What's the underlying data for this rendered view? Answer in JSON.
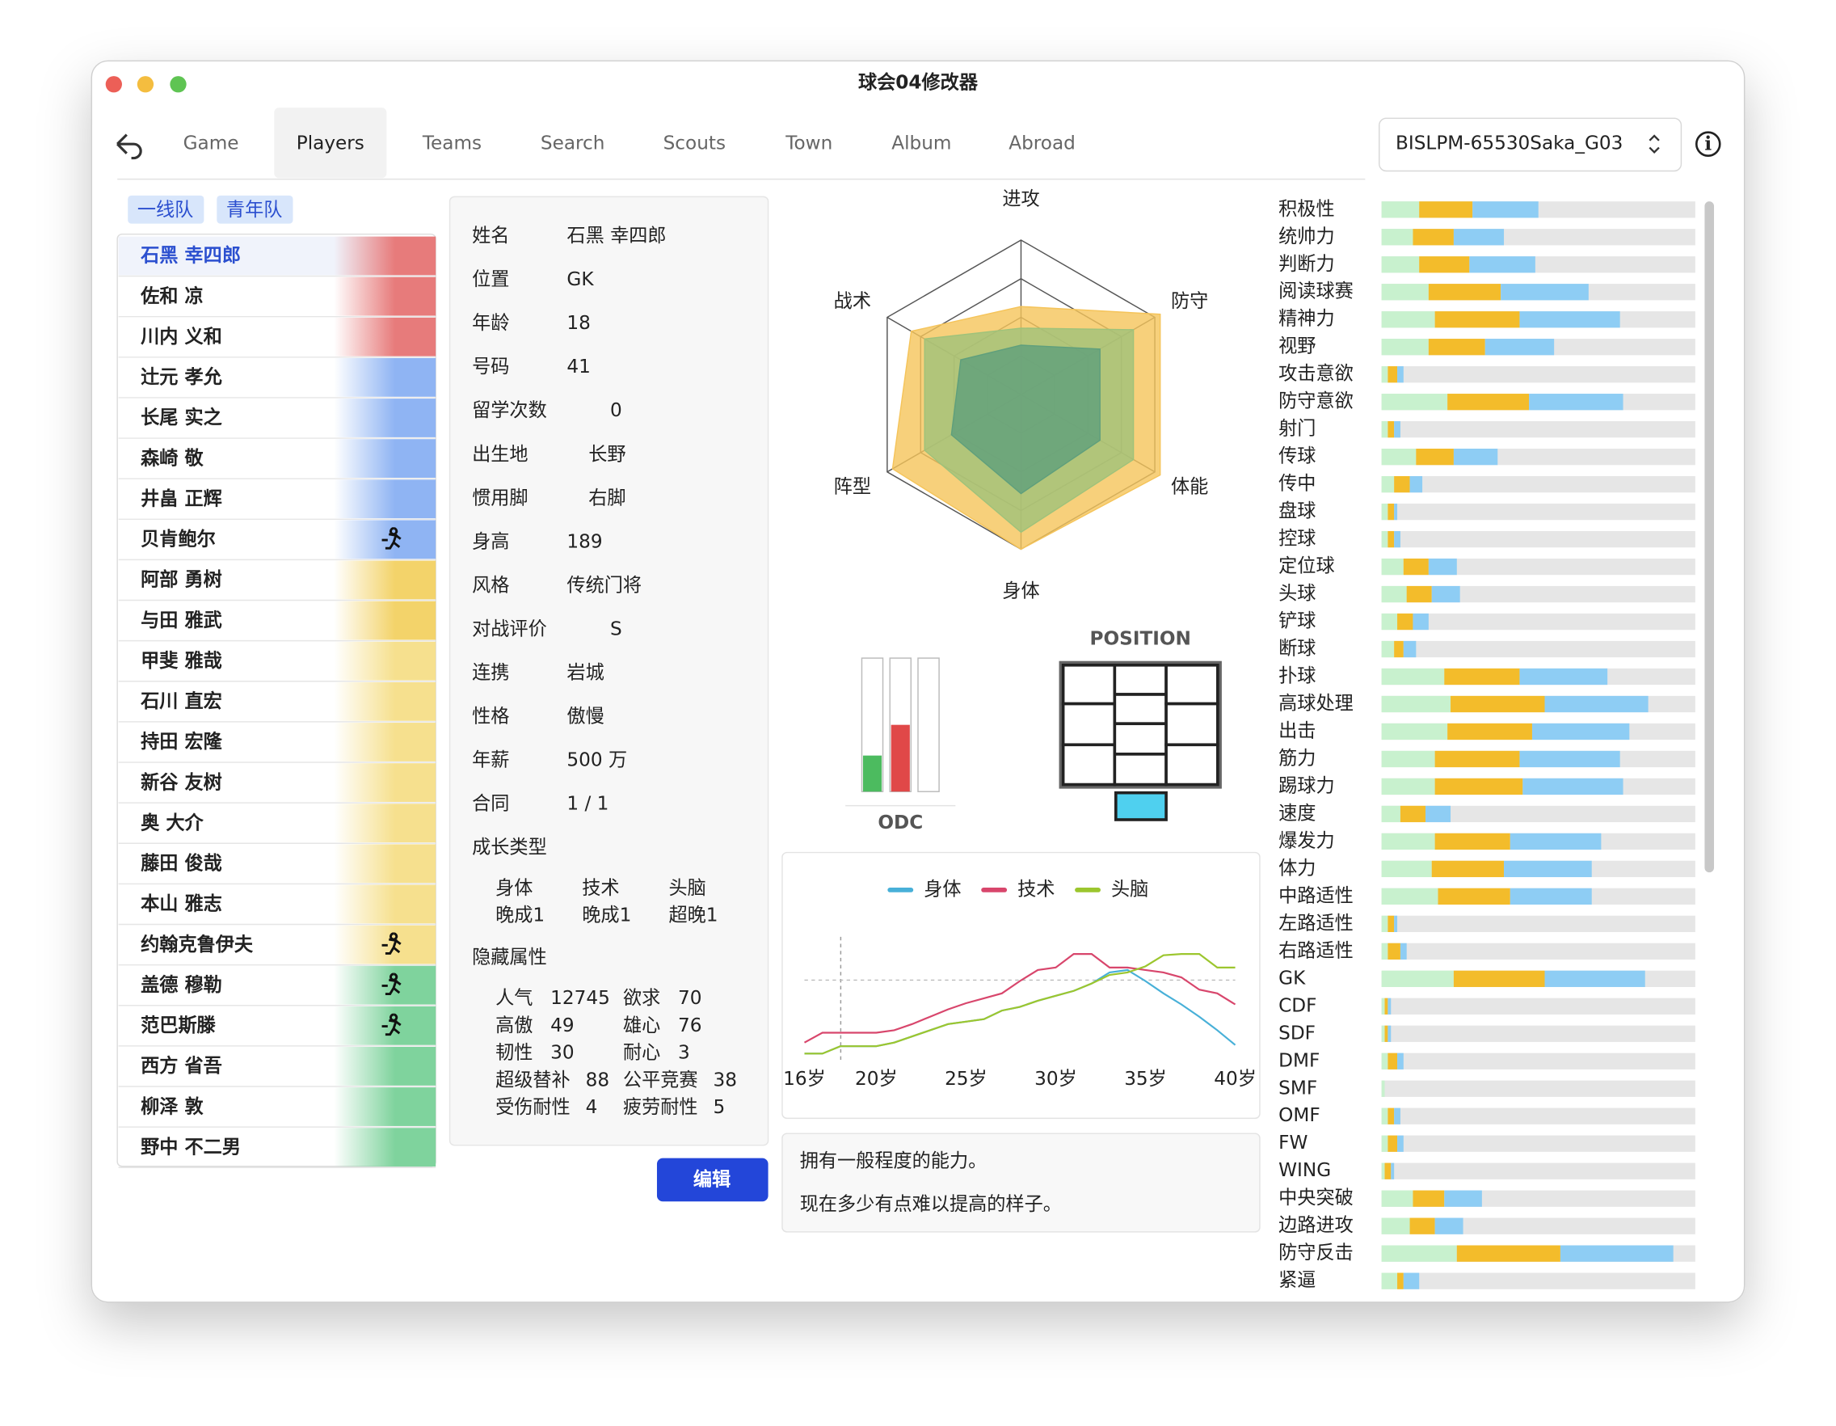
{
  "window": {
    "title": "球会04修改器"
  },
  "tabs": [
    "Game",
    "Players",
    "Teams",
    "Search",
    "Scouts",
    "Town",
    "Album",
    "Abroad"
  ],
  "selected_tab": 1,
  "save_file": "BISLPM-65530Saka_G03",
  "squads": [
    "一线队",
    "青年队"
  ],
  "players": [
    {
      "name": "石黑 幸四郎",
      "color": "#e77b7b",
      "icon": false
    },
    {
      "name": "佐和 凉",
      "color": "#e77b7b",
      "icon": false
    },
    {
      "name": "川内 义和",
      "color": "#e77b7b",
      "icon": false
    },
    {
      "name": "辻元 孝允",
      "color": "#8fb4f3",
      "icon": false
    },
    {
      "name": "长尾 实之",
      "color": "#8fb4f3",
      "icon": false
    },
    {
      "name": "森崎 敬",
      "color": "#8fb4f3",
      "icon": false
    },
    {
      "name": "井畠 正辉",
      "color": "#8fb4f3",
      "icon": false
    },
    {
      "name": "贝肯鲍尔",
      "color": "#8fb4f3",
      "icon": true
    },
    {
      "name": "阿部 勇树",
      "color": "#f3d36a",
      "icon": false
    },
    {
      "name": "与田 雅武",
      "color": "#f3d36a",
      "icon": false
    },
    {
      "name": "甲斐 雅哉",
      "color": "#f6e08e",
      "icon": false
    },
    {
      "name": "石川 直宏",
      "color": "#f6e08e",
      "icon": false
    },
    {
      "name": "持田 宏隆",
      "color": "#f6e08e",
      "icon": false
    },
    {
      "name": "新谷 友树",
      "color": "#f6e08e",
      "icon": false
    },
    {
      "name": "奥 大介",
      "color": "#f6e08e",
      "icon": false
    },
    {
      "name": "藤田 俊哉",
      "color": "#f6e08e",
      "icon": false
    },
    {
      "name": "本山 雅志",
      "color": "#f6e08e",
      "icon": false
    },
    {
      "name": "约翰克鲁伊夫",
      "color": "#f6e08e",
      "icon": true
    },
    {
      "name": "盖德 穆勒",
      "color": "#7fd39d",
      "icon": true
    },
    {
      "name": "范巴斯滕",
      "color": "#7fd39d",
      "icon": true
    },
    {
      "name": "西方 省吾",
      "color": "#7fd39d",
      "icon": false
    },
    {
      "name": "柳泽 敦",
      "color": "#7fd39d",
      "icon": false
    },
    {
      "name": "野中 不二男",
      "color": "#7fd39d",
      "icon": false
    }
  ],
  "profile": {
    "fields": [
      {
        "label": "姓名",
        "value": "石黑 幸四郎"
      },
      {
        "label": "位置",
        "value": "GK"
      },
      {
        "label": "年龄",
        "value": 18
      },
      {
        "label": "号码",
        "value": 41
      },
      {
        "label": "留学次数",
        "value": 0
      },
      {
        "label": "出生地",
        "value": "长野"
      },
      {
        "label": "惯用脚",
        "value": "右脚"
      },
      {
        "label": "身高",
        "value": 189
      },
      {
        "label": "风格",
        "value": "传统门将"
      },
      {
        "label": "对战评价",
        "value": "S"
      },
      {
        "label": "连携",
        "value": "岩城"
      },
      {
        "label": "性格",
        "value": "傲慢"
      },
      {
        "label": "年薪",
        "value": "500 万"
      },
      {
        "label": "合同",
        "value": "1 / 1"
      }
    ],
    "growth": {
      "title": "成长类型",
      "items": [
        {
          "label": "身体",
          "value": "晚成1"
        },
        {
          "label": "技术",
          "value": "晚成1"
        },
        {
          "label": "头脑",
          "value": "超晚1"
        }
      ]
    },
    "hidden": {
      "title": "隐藏属性",
      "items": [
        {
          "label": "人气",
          "value": 12745
        },
        {
          "label": "欲求",
          "value": 70
        },
        {
          "label": "高傲",
          "value": 49
        },
        {
          "label": "雄心",
          "value": 76
        },
        {
          "label": "韧性",
          "value": 30
        },
        {
          "label": "耐心",
          "value": 3
        },
        {
          "label": "超级替补",
          "value": 88
        },
        {
          "label": "公平竞赛",
          "value": 38
        },
        {
          "label": "受伤耐性",
          "value": 4
        },
        {
          "label": "疲劳耐性",
          "value": 5
        }
      ]
    }
  },
  "edit_button": "编辑",
  "position": {
    "title": "POSITION"
  },
  "description": [
    "拥有一般程度的能力。",
    "现在多少有点难以提高的样子。"
  ],
  "chart_data": [
    {
      "type": "radar",
      "axes": [
        "进攻",
        "防守",
        "体能",
        "身体",
        "阵型",
        "战术"
      ],
      "ylim": [
        0,
        100
      ],
      "yticks": [
        25,
        50,
        75,
        100
      ],
      "series": [
        {
          "color": "#f5c45a",
          "values": [
            57,
            104,
            104,
            100,
            96,
            82
          ]
        },
        {
          "color": "#9fc27a",
          "values": [
            43,
            84,
            84,
            89,
            72,
            72
          ]
        },
        {
          "color": "#5f9f7c",
          "values": [
            32,
            59,
            59,
            64,
            52,
            45
          ]
        }
      ]
    },
    {
      "type": "bar",
      "title": "ODC",
      "values": [
        27,
        50,
        0
      ],
      "colors": [
        "#4cbb5f",
        "#e04848",
        "#e04848"
      ],
      "ylim": [
        0,
        100
      ]
    },
    {
      "type": "line",
      "x": [
        16,
        17,
        18,
        19,
        20,
        21,
        22,
        23,
        24,
        25,
        26,
        27,
        28,
        29,
        30,
        31,
        32,
        33,
        34,
        35,
        36,
        37,
        38,
        39,
        40
      ],
      "xlim": [
        16,
        40
      ],
      "ylim": [
        0,
        100
      ],
      "xticks": [
        {
          "value": 16,
          "label": "16岁"
        },
        {
          "value": 20,
          "label": "20岁"
        },
        {
          "value": 25,
          "label": "25岁"
        },
        {
          "value": 30,
          "label": "30岁"
        },
        {
          "value": 35,
          "label": "35岁"
        },
        {
          "value": 40,
          "label": "40岁"
        }
      ],
      "series": [
        {
          "name": "身体",
          "color": "#48b0d8",
          "values": [
            5,
            5,
            11,
            11,
            11,
            14,
            19,
            24,
            29,
            31,
            33,
            40,
            43,
            48,
            52,
            56,
            62,
            71,
            73,
            64,
            54,
            45,
            35,
            24,
            12
          ]
        },
        {
          "name": "技术",
          "color": "#d8466c",
          "values": [
            14,
            22,
            22,
            22,
            22,
            24,
            29,
            35,
            41,
            46,
            50,
            54,
            64,
            73,
            75,
            86,
            86,
            75,
            75,
            73,
            71,
            67,
            57,
            54,
            45
          ]
        },
        {
          "name": "头脑",
          "color": "#9cc62e",
          "values": [
            5,
            5,
            11,
            11,
            11,
            14,
            19,
            24,
            29,
            31,
            33,
            40,
            43,
            48,
            52,
            56,
            62,
            69,
            71,
            76,
            85,
            86,
            86,
            75,
            75
          ]
        }
      ]
    },
    {
      "type": "stacked-hbar",
      "xlim": [
        0,
        100
      ],
      "categories": [
        "积极性",
        "统帅力",
        "判断力",
        "阅读球赛",
        "精神力",
        "视野",
        "攻击意欲",
        "防守意欲",
        "射门",
        "传球",
        "传中",
        "盘球",
        "控球",
        "定位球",
        "头球",
        "铲球",
        "断球",
        "扑球",
        "高球处理",
        "出击",
        "筋力",
        "踢球力",
        "速度",
        "爆发力",
        "体力",
        "中路适性",
        "左路适性",
        "右路适性",
        "GK",
        "CDF",
        "SDF",
        "DMF",
        "SMF",
        "OMF",
        "FW",
        "WING",
        "中央突破",
        "边路进攻",
        "防守反击",
        "紧逼"
      ],
      "series": [
        {
          "color": "#c8f1ce",
          "values": [
            12,
            10,
            12,
            15,
            17,
            15,
            2,
            21,
            2,
            11,
            4,
            2,
            2,
            7,
            8,
            5,
            4,
            20,
            22,
            21,
            17,
            17,
            6,
            17,
            16,
            18,
            2,
            2,
            23,
            1,
            1,
            2,
            1,
            2,
            2,
            1,
            10,
            9,
            24,
            5
          ]
        },
        {
          "color": "#f3bc2b",
          "values": [
            17,
            13,
            16,
            23,
            27,
            18,
            3,
            26,
            2,
            12,
            5,
            2,
            2,
            8,
            8,
            5,
            3,
            24,
            30,
            27,
            27,
            28,
            8,
            24,
            23,
            23,
            2,
            4,
            29,
            1,
            1,
            3,
            0,
            2,
            3,
            2,
            10,
            8,
            33,
            2
          ]
        },
        {
          "color": "#8ecdf4",
          "values": [
            21,
            16,
            21,
            28,
            32,
            22,
            2,
            30,
            2,
            14,
            4,
            1,
            2,
            9,
            9,
            5,
            4,
            28,
            33,
            31,
            32,
            32,
            8,
            29,
            28,
            26,
            1,
            2,
            32,
            1,
            1,
            2,
            0,
            2,
            2,
            1,
            12,
            9,
            36,
            5
          ]
        }
      ]
    }
  ]
}
